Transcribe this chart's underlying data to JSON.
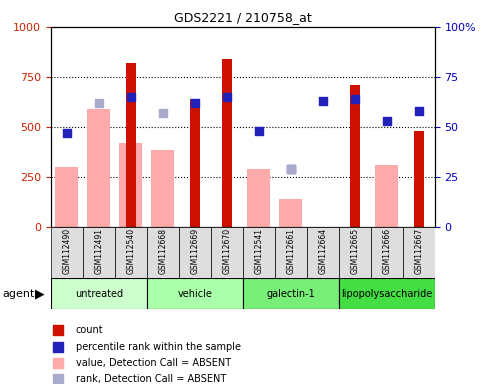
{
  "title": "GDS2221 / 210758_at",
  "samples": [
    "GSM112490",
    "GSM112491",
    "GSM112540",
    "GSM112668",
    "GSM112669",
    "GSM112670",
    "GSM112541",
    "GSM112661",
    "GSM112664",
    "GSM112665",
    "GSM112666",
    "GSM112667"
  ],
  "count_values": [
    null,
    null,
    820,
    null,
    640,
    840,
    null,
    null,
    null,
    710,
    null,
    480
  ],
  "percentile_pct": [
    47,
    null,
    65,
    null,
    62,
    65,
    48,
    29,
    63,
    64,
    53,
    58
  ],
  "absent_value_values": [
    300,
    590,
    420,
    385,
    null,
    null,
    290,
    140,
    null,
    null,
    310,
    null
  ],
  "absent_rank_pct": [
    null,
    62,
    null,
    57,
    null,
    null,
    null,
    29,
    null,
    null,
    null,
    null
  ],
  "ylim_left": [
    0,
    1000
  ],
  "ylim_right": [
    0,
    100
  ],
  "yticks_left": [
    0,
    250,
    500,
    750,
    1000
  ],
  "yticks_right": [
    0,
    25,
    50,
    75,
    100
  ],
  "bar_color": "#cc1100",
  "percentile_color": "#2222bb",
  "absent_value_color": "#ffaaaa",
  "absent_rank_color": "#aaaacc",
  "group_data": [
    {
      "start": 0,
      "end": 3,
      "name": "untreated",
      "color": "#ccffcc"
    },
    {
      "start": 3,
      "end": 6,
      "name": "vehicle",
      "color": "#aaffaa"
    },
    {
      "start": 6,
      "end": 9,
      "name": "galectin-1",
      "color": "#77ee77"
    },
    {
      "start": 9,
      "end": 12,
      "name": "lipopolysaccharide",
      "color": "#44dd44"
    }
  ],
  "legend_items": [
    {
      "color": "#cc1100",
      "label": "count",
      "marker": "s"
    },
    {
      "color": "#2222bb",
      "label": "percentile rank within the sample",
      "marker": "s"
    },
    {
      "color": "#ffaaaa",
      "label": "value, Detection Call = ABSENT",
      "marker": "s"
    },
    {
      "color": "#aaaacc",
      "label": "rank, Detection Call = ABSENT",
      "marker": "s"
    }
  ]
}
